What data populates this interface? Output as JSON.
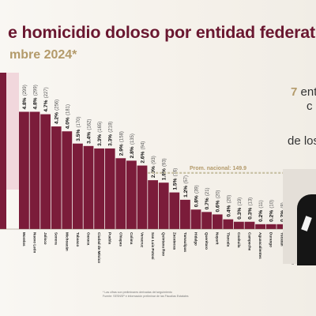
{
  "title": "e homicidio doloso por entidad federativ",
  "subtitle": "mbre 2024*",
  "side": {
    "seven": "7",
    "line1": "enti",
    "line2": "c",
    "line3": "de los"
  },
  "footnotes": [
    "* Las cifras son preliminares derivadas del seguimiento",
    "Fuente: SESNSP e información preliminar de las Fiscalías Estatales"
  ],
  "colors": {
    "bar": "#7b1c3a",
    "average_line": "#c9c2a6",
    "title": "#6a1730",
    "accent": "#b39a6a"
  },
  "chart_data": {
    "type": "bar",
    "title": "e homicidio doloso por entidad federativ",
    "subtitle": "mbre 2024*",
    "categories": [
      "Morelos",
      "Nuevo León",
      "Jalisco",
      "Sonora",
      "Michoacán",
      "Tabasco",
      "Oaxaca",
      "Ciudad de México",
      "Puebla",
      "Chiapas",
      "Colima",
      "Veracruz",
      "San Luis Potosí",
      "Quintana Roo",
      "Zacatecas",
      "Tamaulipas",
      "Hidalgo",
      "Querétaro",
      "Nayarit",
      "Tlaxcala",
      "Coahuila",
      "Campeche",
      "Aguascalientes",
      "Durango",
      "Yucatán",
      "Baja California Sur"
    ],
    "percent_labels": [
      "4.8%",
      "4.8%",
      "4.7%",
      "4.2%",
      "4.0%",
      "3.5%",
      "3.4%",
      "3.3%",
      "3.3%",
      "2.9%",
      "2.8%",
      "2.6%",
      "2.0%",
      "1.9%",
      "1.5%",
      "1.2%",
      "0.8%",
      "0.7%",
      "0.6%",
      "0.4%",
      "0.3%",
      "0.3%",
      "0.2%",
      "0.2%",
      "0.2%",
      "0.1%"
    ],
    "count_labels": [
      "(299)",
      "(299)",
      "(227)",
      "(256)",
      "(181)",
      "(170)",
      "(162)",
      "(165)",
      "(218)",
      "(158)",
      "(135)",
      "(94)",
      "(93)",
      "(93)",
      "(76)",
      "(57)",
      "(39)",
      "(21)",
      "(20)",
      "(20)",
      "(19)",
      "(13)",
      "(11)",
      "(10)",
      "(8)",
      "(7)"
    ],
    "values": [
      4.8,
      4.8,
      4.7,
      4.2,
      4.0,
      3.5,
      3.4,
      3.3,
      3.3,
      2.9,
      2.8,
      2.6,
      2.0,
      1.9,
      1.5,
      1.2,
      0.8,
      0.7,
      0.6,
      0.4,
      0.3,
      0.3,
      0.2,
      0.2,
      0.2,
      0.1
    ],
    "average_label": "Prom. nacional: 149.9",
    "average_value": 2.3,
    "ylim": [
      0,
      6.4
    ],
    "partial_bar_left_value": 6.4
  }
}
